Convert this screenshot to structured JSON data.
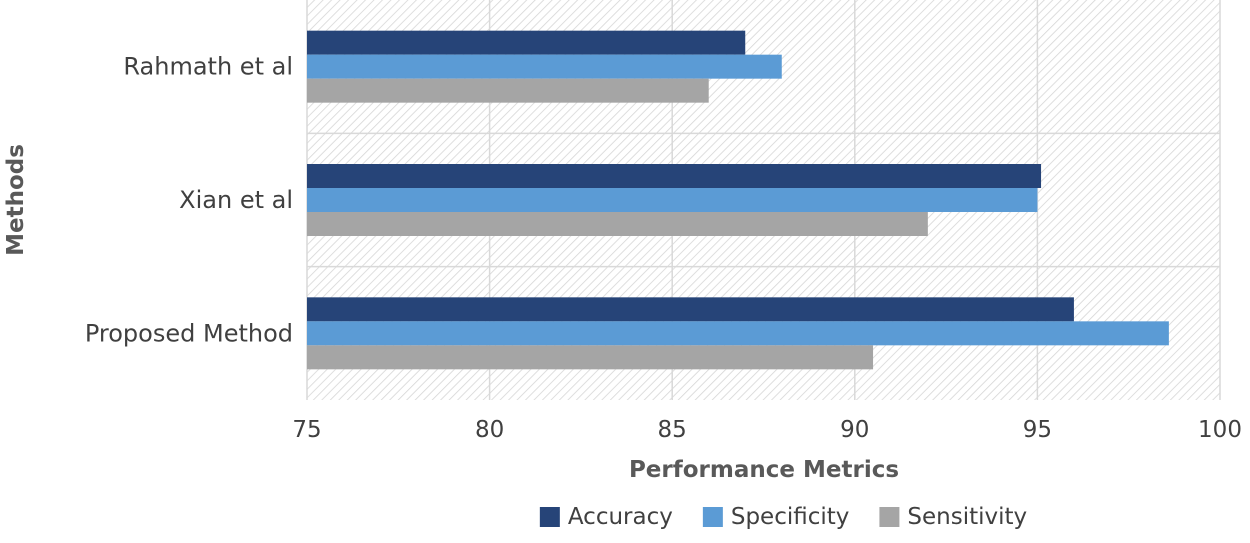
{
  "chart_data": {
    "type": "bar",
    "orientation": "horizontal",
    "title": "",
    "xlabel": "Performance Metrics",
    "ylabel": "Methods",
    "xlim": [
      75,
      100
    ],
    "x_ticks": [
      75,
      80,
      85,
      90,
      95,
      100
    ],
    "x_tick_labels": [
      "75",
      "80",
      "85",
      "90",
      "95",
      "100"
    ],
    "categories": [
      "Rahmath et al",
      "Xian et al",
      "Proposed Method"
    ],
    "series": [
      {
        "name": "Accuracy",
        "color": "#264478",
        "values": [
          87,
          95.1,
          96
        ]
      },
      {
        "name": "Specificity",
        "color": "#5b9bd5",
        "values": [
          88,
          95,
          98.6
        ]
      },
      {
        "name": "Sensitivity",
        "color": "#a5a5a5",
        "values": [
          86,
          92,
          90.5
        ]
      }
    ],
    "grid": true,
    "legend_position": "bottom"
  }
}
